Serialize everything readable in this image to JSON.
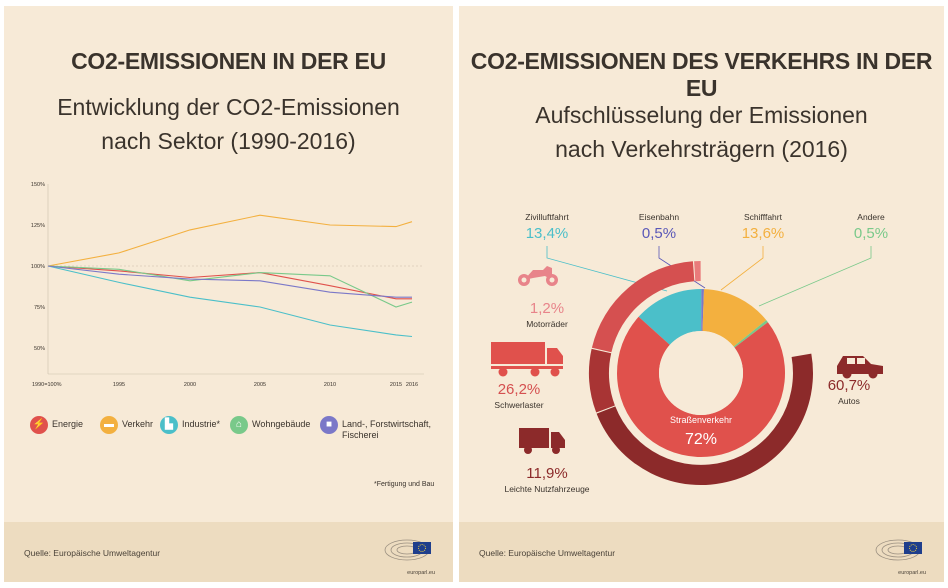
{
  "left": {
    "title": "CO2-EMISSIONEN IN DER EU",
    "subtitle_line1": "Entwicklung der CO2-Emissionen",
    "subtitle_line2": "nach Sektor (1990-2016)",
    "footnote": "*Fertigung und Bau",
    "source": "Quelle: Europäische Umweltagentur",
    "logo_text": "europarl.eu"
  },
  "right": {
    "title": "CO2-EMISSIONEN DES VERKEHRS IN DER EU",
    "subtitle_line1": "Aufschlüsselung der Emissionen",
    "subtitle_line2": "nach Verkehrsträgern (2016)",
    "source": "Quelle: Europäische Umweltagentur",
    "logo_text": "europarl.eu"
  },
  "colors": {
    "energie": "#e0514c",
    "verkehr": "#f3b03f",
    "industrie": "#4bbfc9",
    "wohngebaeude": "#79c98a",
    "land": "#7b78c8",
    "ring_dark": "#8c2a2a",
    "ring_mid": "#d55050",
    "ring_light": "#e97b7b"
  },
  "legend": [
    {
      "label": "Energie",
      "color": "#e0514c",
      "icon": "lightning-icon"
    },
    {
      "label": "Verkehr",
      "color": "#f3b03f",
      "icon": "car-icon"
    },
    {
      "label": "Industrie*",
      "color": "#4bbfc9",
      "icon": "factory-icon"
    },
    {
      "label": "Wohngebäude",
      "color": "#79c98a",
      "icon": "house-icon"
    },
    {
      "label": "Land-, Forstwirtschaft,\nFischerei",
      "color": "#7b78c8",
      "icon": "tractor-icon"
    }
  ],
  "chart_data": [
    {
      "type": "line",
      "title": "Entwicklung der CO2-Emissionen nach Sektor (1990-2016)",
      "x": [
        1990,
        1995,
        2000,
        2005,
        2010,
        2015,
        2016
      ],
      "x_tick_labels": [
        "1990=100%",
        "1995",
        "2000",
        "2005",
        "2010",
        "2015",
        "2016"
      ],
      "y_tick_labels": [
        "50%",
        "75%",
        "100%",
        "125%",
        "150%"
      ],
      "ylim": [
        45,
        150
      ],
      "series": [
        {
          "name": "Energie",
          "values": [
            100,
            97,
            93,
            96,
            88,
            80,
            80
          ]
        },
        {
          "name": "Verkehr",
          "values": [
            100,
            108,
            122,
            131,
            125,
            124,
            127
          ]
        },
        {
          "name": "Industrie*",
          "values": [
            100,
            90,
            81,
            75,
            64,
            58,
            57
          ]
        },
        {
          "name": "Wohngebäude",
          "values": [
            100,
            98,
            91,
            96,
            94,
            75,
            78
          ]
        },
        {
          "name": "Land-, Forstwirtschaft, Fischerei",
          "values": [
            100,
            95,
            92,
            91,
            84,
            81,
            81
          ]
        }
      ]
    },
    {
      "type": "pie",
      "title": "Aufschlüsselung der Emissionen nach Verkehrsträgern (2016)",
      "inner": [
        {
          "label": "Straßenverkehr",
          "value": 72,
          "display": "72%"
        },
        {
          "label": "Zivilluftfahrt",
          "value": 13.4,
          "display": "13,4%"
        },
        {
          "label": "Eisenbahn",
          "value": 0.5,
          "display": "0,5%"
        },
        {
          "label": "Schifffahrt",
          "value": 13.6,
          "display": "13,6%"
        },
        {
          "label": "Andere",
          "value": 0.5,
          "display": "0,5%"
        }
      ],
      "road_breakdown": [
        {
          "label": "Autos",
          "value": 60.7,
          "display": "60,7%"
        },
        {
          "label": "Leichte Nutzfahrzeuge",
          "value": 11.9,
          "display": "11,9%"
        },
        {
          "label": "Schwerlaster",
          "value": 26.2,
          "display": "26,2%"
        },
        {
          "label": "Motorräder",
          "value": 1.2,
          "display": "1,2%"
        }
      ]
    }
  ]
}
